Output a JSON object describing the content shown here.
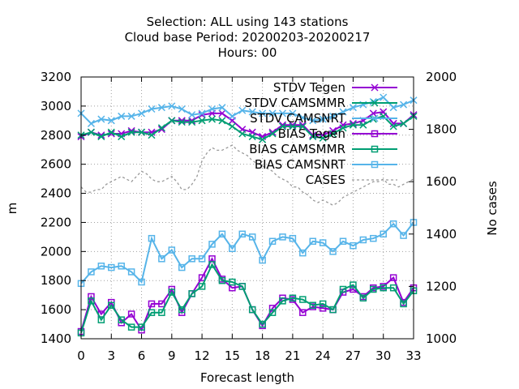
{
  "chart_data": {
    "type": "line",
    "title": [
      "Selection: ALL using   143 stations",
      "Cloud base   Period: 20200203-20200217",
      "Hours:  00"
    ],
    "xlabel": "Forecast length",
    "ylabel": "m",
    "y2label": "No cases",
    "xlim": [
      0,
      33
    ],
    "ylim": [
      1400,
      3200
    ],
    "y2lim": [
      1000,
      2000
    ],
    "xticks": [
      "0",
      "3",
      "6",
      "9",
      "12",
      "15",
      "18",
      "21",
      "24",
      "27",
      "30",
      "33"
    ],
    "yticks": [
      "1400",
      "1600",
      "1800",
      "2000",
      "2200",
      "2400",
      "2600",
      "2800",
      "3000",
      "3200"
    ],
    "y2ticks": [
      "1000",
      "1200",
      "1400",
      "1600",
      "1800",
      "2000"
    ],
    "grid": true,
    "legend_position": "top-right",
    "x": [
      0,
      1,
      2,
      3,
      4,
      5,
      6,
      7,
      8,
      9,
      10,
      11,
      12,
      13,
      14,
      15,
      16,
      17,
      18,
      19,
      20,
      21,
      22,
      23,
      24,
      25,
      26,
      27,
      28,
      29,
      30,
      31,
      32,
      33
    ],
    "series": [
      {
        "name": "STDV Tegen",
        "color": "#9400d3",
        "marker": "x",
        "values": [
          2790,
          2820,
          2800,
          2810,
          2810,
          2830,
          2820,
          2820,
          2840,
          2900,
          2900,
          2900,
          2940,
          2950,
          2950,
          2900,
          2840,
          2820,
          2790,
          2820,
          2870,
          2870,
          2870,
          2800,
          2800,
          2830,
          2870,
          2880,
          2900,
          2950,
          2960,
          2880,
          2880,
          2940
        ]
      },
      {
        "name": "STDV CAMSMMR",
        "color": "#009e73",
        "marker": "x",
        "values": [
          2800,
          2820,
          2790,
          2820,
          2790,
          2820,
          2820,
          2800,
          2850,
          2900,
          2890,
          2890,
          2900,
          2910,
          2900,
          2860,
          2810,
          2790,
          2770,
          2810,
          2860,
          2860,
          2860,
          2790,
          2780,
          2810,
          2850,
          2870,
          2870,
          2910,
          2930,
          2860,
          2880,
          2930
        ]
      },
      {
        "name": "STDV CAMSNRT",
        "color": "#56b4e9",
        "marker": "x",
        "values": [
          2950,
          2880,
          2910,
          2900,
          2930,
          2930,
          2950,
          2980,
          2990,
          3000,
          2980,
          2940,
          2950,
          2980,
          2990,
          2930,
          2970,
          2960,
          2950,
          2950,
          2950,
          2950,
          2920,
          2900,
          2910,
          2930,
          2960,
          2990,
          3010,
          3030,
          3060,
          2990,
          3010,
          3040
        ]
      },
      {
        "name": "BIAS Tegen",
        "color": "#9400d3",
        "marker": "box",
        "values": [
          1450,
          1690,
          1570,
          1650,
          1510,
          1570,
          1460,
          1640,
          1640,
          1740,
          1580,
          1710,
          1820,
          1950,
          1810,
          1750,
          1760,
          1600,
          1490,
          1610,
          1680,
          1670,
          1580,
          1620,
          1610,
          1600,
          1720,
          1740,
          1690,
          1750,
          1760,
          1820,
          1650,
          1750
        ]
      },
      {
        "name": "BIAS CAMSMMR",
        "color": "#009e73",
        "marker": "box",
        "values": [
          1440,
          1660,
          1530,
          1630,
          1530,
          1480,
          1480,
          1580,
          1580,
          1720,
          1600,
          1710,
          1760,
          1910,
          1800,
          1790,
          1760,
          1600,
          1500,
          1580,
          1660,
          1680,
          1670,
          1630,
          1640,
          1600,
          1740,
          1770,
          1680,
          1740,
          1750,
          1750,
          1640,
          1730
        ]
      },
      {
        "name": "BIAS CAMSNRT",
        "color": "#56b4e9",
        "marker": "box",
        "values": [
          1780,
          1860,
          1900,
          1890,
          1900,
          1860,
          1790,
          2090,
          1950,
          2010,
          1890,
          1950,
          1950,
          2050,
          2120,
          2020,
          2120,
          2100,
          1940,
          2070,
          2100,
          2090,
          1990,
          2070,
          2060,
          2000,
          2070,
          2040,
          2080,
          2090,
          2120,
          2190,
          2110,
          2200
        ]
      },
      {
        "name": "CASES",
        "color": "#999999",
        "marker": "none",
        "dashed": true,
        "axis": "y2",
        "x": [
          0,
          0.5,
          1,
          1.5,
          2,
          2.5,
          3,
          3.5,
          4,
          4.5,
          5,
          5.5,
          6,
          6.5,
          7,
          7.5,
          8,
          8.5,
          9,
          9.5,
          10,
          10.5,
          11,
          11.5,
          12,
          12.5,
          13,
          13.5,
          14,
          14.5,
          15,
          15.5,
          16,
          16.5,
          17,
          17.5,
          18,
          18.5,
          19,
          19.5,
          20,
          20.5,
          21,
          21.5,
          22,
          22.5,
          23,
          23.5,
          24,
          24.5,
          25,
          25.5,
          26,
          26.5,
          27,
          27.5,
          28,
          28.5,
          29,
          29.5,
          30,
          30.5,
          31,
          31.5,
          32,
          32.5,
          33
        ],
        "values": [
          1580,
          1560,
          1560,
          1570,
          1570,
          1590,
          1600,
          1610,
          1620,
          1610,
          1600,
          1620,
          1640,
          1630,
          1610,
          1600,
          1600,
          1610,
          1620,
          1600,
          1570,
          1570,
          1590,
          1620,
          1680,
          1710,
          1730,
          1720,
          1720,
          1730,
          1740,
          1720,
          1710,
          1700,
          1680,
          1670,
          1660,
          1650,
          1640,
          1620,
          1610,
          1600,
          1580,
          1580,
          1560,
          1550,
          1530,
          1520,
          1530,
          1520,
          1510,
          1520,
          1540,
          1550,
          1560,
          1570,
          1580,
          1590,
          1600,
          1600,
          1610,
          1590,
          1590,
          1580,
          1590,
          1600,
          1610
        ]
      }
    ]
  }
}
